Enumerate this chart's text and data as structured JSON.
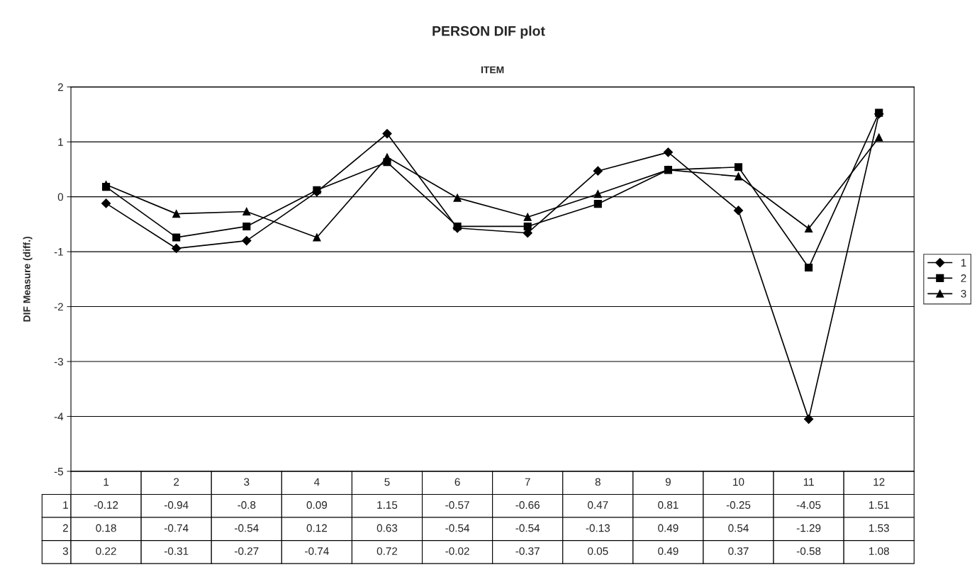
{
  "chart_data": {
    "type": "line",
    "title": "PERSON DIF plot",
    "xlabel": "ITEM",
    "ylabel": "DIF Measure (diff.)",
    "categories": [
      "1",
      "2",
      "3",
      "4",
      "5",
      "6",
      "7",
      "8",
      "9",
      "10",
      "11",
      "12"
    ],
    "series": [
      {
        "name": "1",
        "color": "#000000",
        "marker": "diamond",
        "values": [
          -0.12,
          -0.94,
          -0.8,
          0.09,
          1.15,
          -0.57,
          -0.66,
          0.47,
          0.81,
          -0.25,
          -4.05,
          1.51
        ]
      },
      {
        "name": "2",
        "color": "#000000",
        "marker": "square",
        "values": [
          0.18,
          -0.74,
          -0.54,
          0.12,
          0.63,
          -0.54,
          -0.54,
          -0.13,
          0.49,
          0.54,
          -1.29,
          1.53
        ]
      },
      {
        "name": "3",
        "color": "#000000",
        "marker": "triangle",
        "values": [
          0.22,
          -0.31,
          -0.27,
          -0.74,
          0.72,
          -0.02,
          -0.37,
          0.05,
          0.49,
          0.37,
          -0.58,
          1.08
        ]
      }
    ],
    "ylim": [
      -5,
      2
    ],
    "yticks": [
      -5,
      -4,
      -3,
      -2,
      -1,
      0,
      1,
      2
    ],
    "grid": "y",
    "legend": "right",
    "data_labels": true,
    "line_style": "solid"
  }
}
